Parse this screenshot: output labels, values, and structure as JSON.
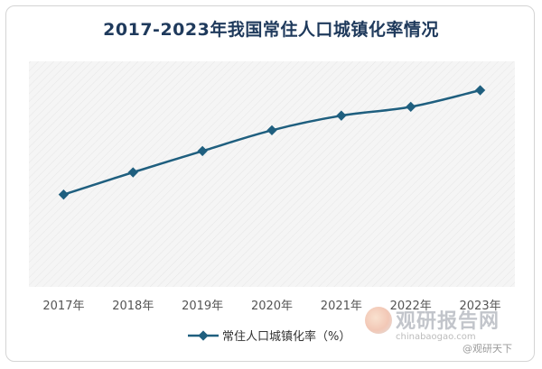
{
  "chart_data": {
    "type": "line",
    "title": "2017-2023年我国常住人口城镇化率情况",
    "categories": [
      "2017年",
      "2018年",
      "2019年",
      "2020年",
      "2021年",
      "2022年",
      "2023年"
    ],
    "series": [
      {
        "name": "常住人口城镇化率（%）",
        "values": [
          60.24,
          61.5,
          62.71,
          63.89,
          64.72,
          65.22,
          66.16
        ]
      }
    ],
    "ylim": [
      55,
      67.8
    ],
    "grid": false,
    "legend_position": "bottom",
    "colors": {
      "line": "#1f5f7f",
      "plot_bg": "#f4f4f4",
      "title": "#1f3a5c"
    }
  },
  "watermark": {
    "brand": "观研报告网",
    "url": "chinabaogao.com",
    "credit": "@观研天下"
  }
}
